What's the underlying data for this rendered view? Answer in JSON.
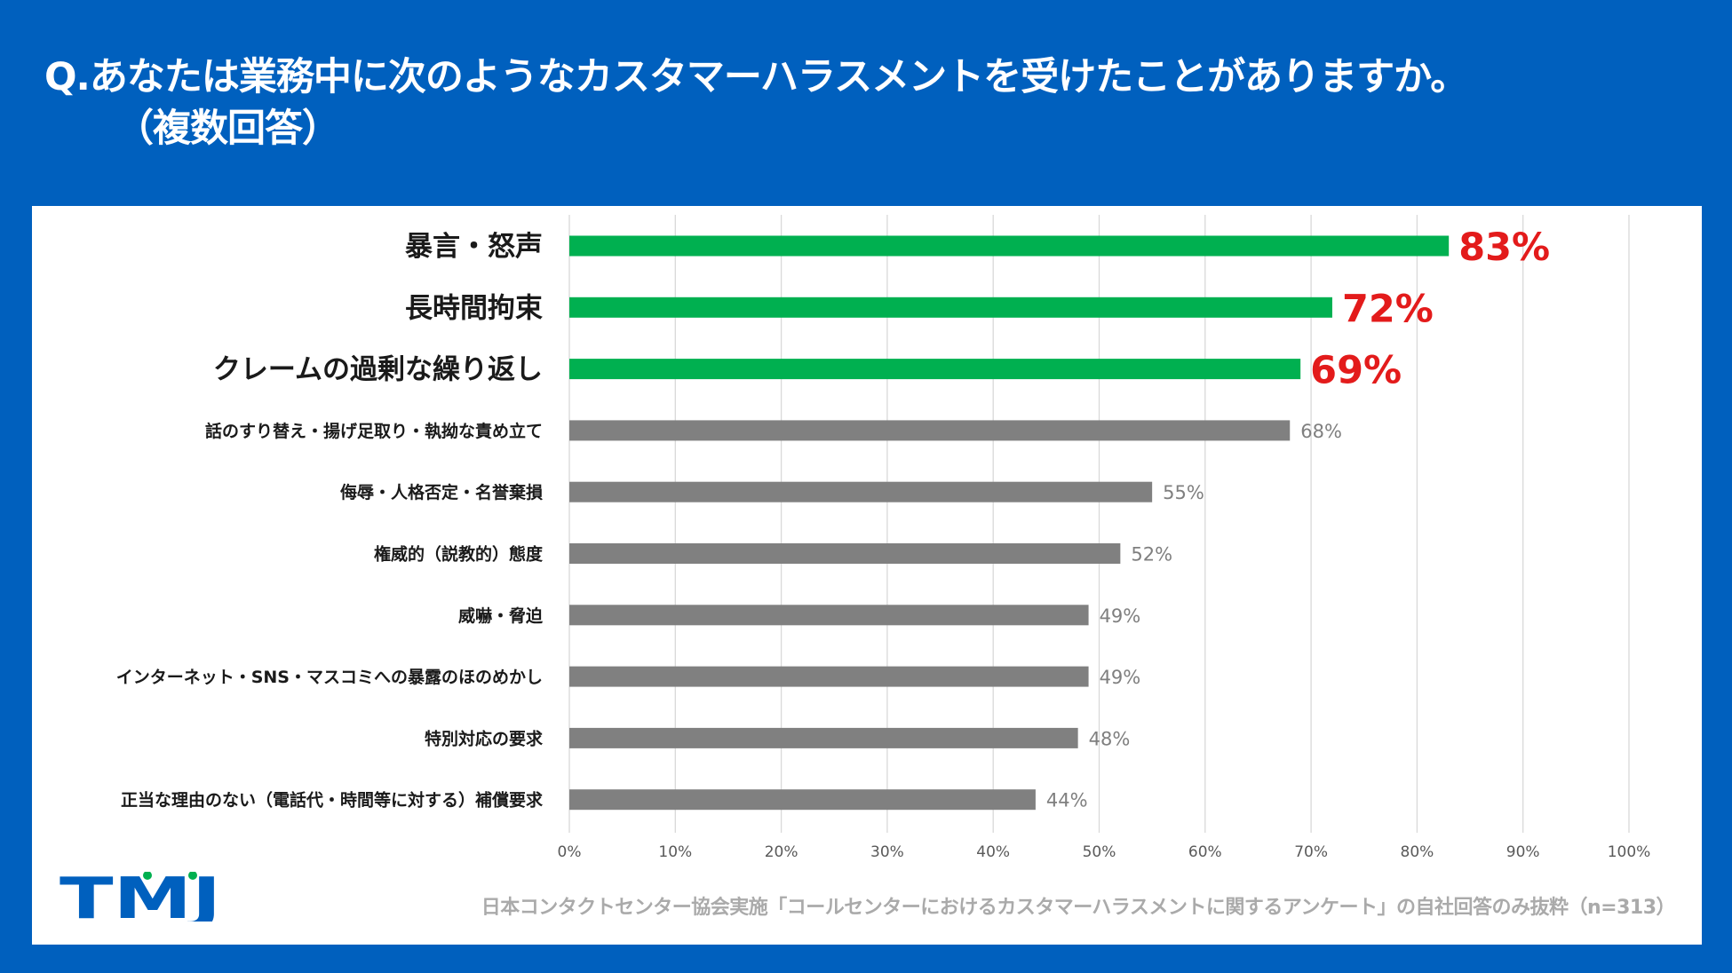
{
  "header": {
    "title_line1": "Q.あなたは業務中に次のようなカスタマーハラスメントを受けたことがありますか。",
    "title_line2": "（複数回答）"
  },
  "footer": {
    "logo_text": "TMJ",
    "source": "日本コンタクトセンター協会実施「コールセンターにおけるカスタマーハラスメントに関するアンケート」の自社回答のみ抜粋（n=313）"
  },
  "colors": {
    "background": "#0060BE",
    "highlight_bar": "#00B050",
    "normal_bar": "#808080",
    "highlight_label": "#E31B1B",
    "normal_label": "#7F7F7F",
    "gridline": "#D9D9D9",
    "logo_blue": "#0060BE",
    "logo_green": "#00B050"
  },
  "chart_data": {
    "type": "bar",
    "orientation": "horizontal",
    "title": "Q.あなたは業務中に次のようなカスタマーハラスメントを受けたことがありますか。（複数回答）",
    "xlabel": "",
    "ylabel": "",
    "xlim": [
      0,
      100
    ],
    "grid": true,
    "x_ticks": [
      "0%",
      "10%",
      "20%",
      "30%",
      "40%",
      "50%",
      "60%",
      "70%",
      "80%",
      "90%",
      "100%"
    ],
    "categories": [
      "暴言・怒声",
      "長時間拘束",
      "クレームの過剰な繰り返し",
      "話のすり替え・揚げ足取り・執拗な責め立て",
      "侮辱・人格否定・名誉棄損",
      "権威的（説教的）態度",
      "威嚇・脅迫",
      "インターネット・SNS・マスコミへの暴露のほのめかし",
      "特別対応の要求",
      "正当な理由のない（電話代・時間等に対する）補償要求"
    ],
    "values": [
      83,
      72,
      69,
      68,
      55,
      52,
      49,
      49,
      48,
      44
    ],
    "value_labels": [
      "83%",
      "72%",
      "69%",
      "68%",
      "55%",
      "52%",
      "49%",
      "49%",
      "48%",
      "44%"
    ],
    "highlighted": [
      true,
      true,
      true,
      false,
      false,
      false,
      false,
      false,
      false,
      false
    ]
  }
}
